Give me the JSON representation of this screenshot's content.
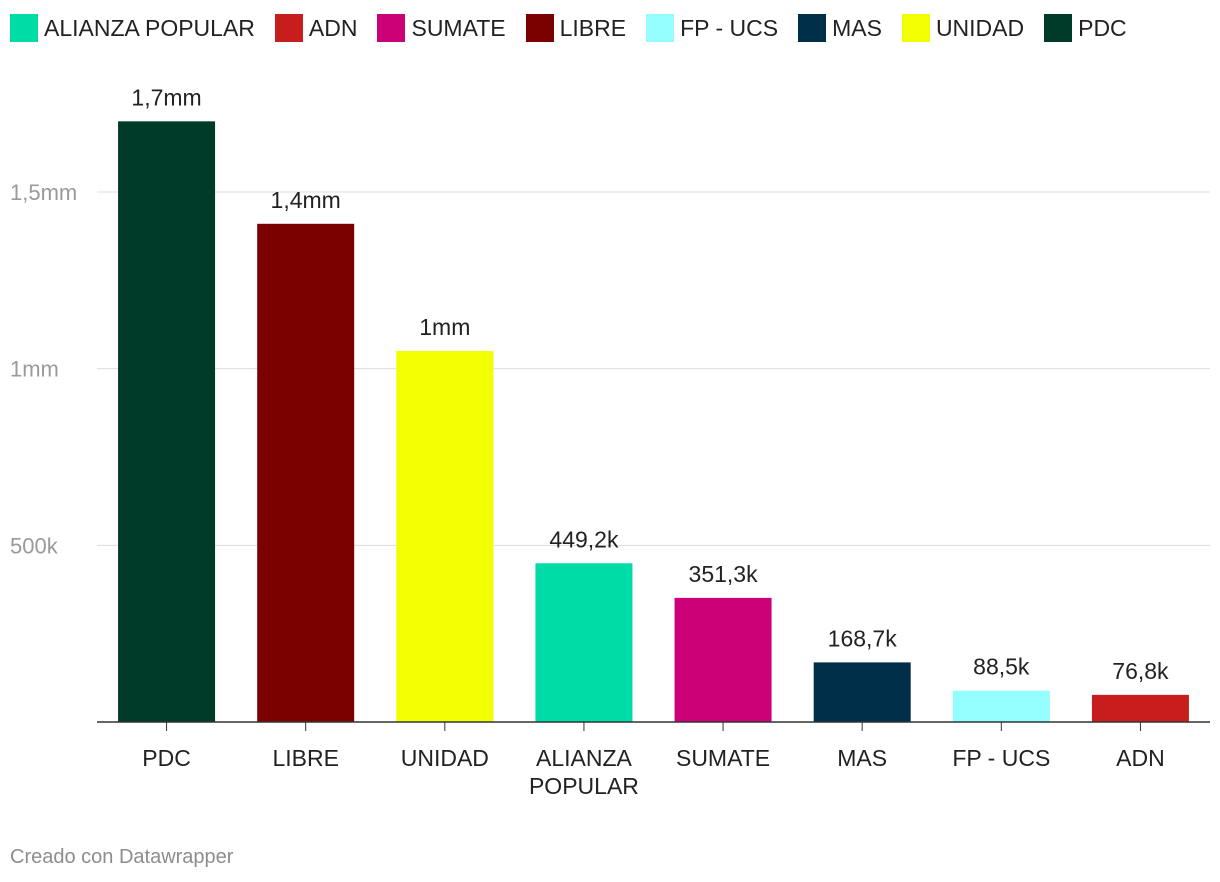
{
  "legend": [
    {
      "label": "ALIANZA POPULAR",
      "color": "#00dca6"
    },
    {
      "label": "ADN",
      "color": "#c71e1d"
    },
    {
      "label": "SUMATE",
      "color": "#cc0077"
    },
    {
      "label": "LIBRE",
      "color": "#7b0000"
    },
    {
      "label": "FP - UCS",
      "color": "#93fdff"
    },
    {
      "label": "MAS",
      "color": "#003049"
    },
    {
      "label": "UNIDAD",
      "color": "#f1ff00"
    },
    {
      "label": "PDC",
      "color": "#003a29"
    }
  ],
  "chart_data": {
    "type": "bar",
    "title": "",
    "xlabel": "",
    "ylabel": "",
    "ylim": [
      0,
      1800000
    ],
    "yticks": [
      {
        "value": 500000,
        "label": "500k"
      },
      {
        "value": 1000000,
        "label": "1mm"
      },
      {
        "value": 1500000,
        "label": "1,5mm"
      }
    ],
    "grid": true,
    "legend_position": "top",
    "categories": [
      "PDC",
      "LIBRE",
      "UNIDAD",
      "ALIANZA POPULAR",
      "SUMATE",
      "MAS",
      "FP - UCS",
      "ADN"
    ],
    "values": [
      1700000,
      1410000,
      1050000,
      449200,
      351300,
      168700,
      88500,
      76800
    ],
    "value_labels": [
      "1,7mm",
      "1,4mm",
      "1mm",
      "449,2k",
      "351,3k",
      "168,7k",
      "88,5k",
      "76,8k"
    ],
    "colors": [
      "#003a29",
      "#7b0000",
      "#f1ff00",
      "#00dca6",
      "#cc0077",
      "#003049",
      "#93fdff",
      "#c71e1d"
    ]
  },
  "footer": "Creado con Datawrapper"
}
